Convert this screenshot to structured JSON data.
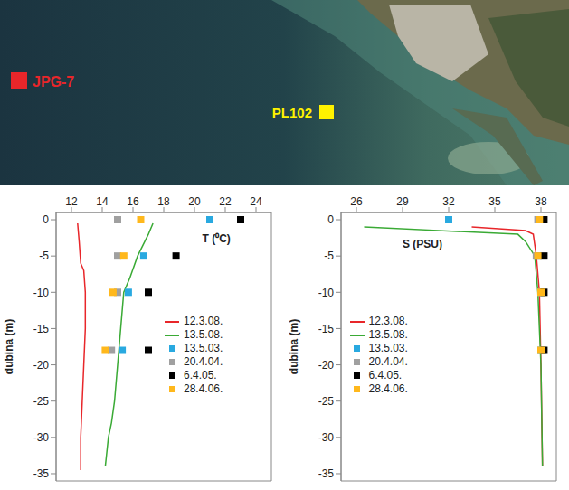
{
  "map": {
    "markers": [
      {
        "label": "JPG-7",
        "color": "#e8262a"
      },
      {
        "label": "PL102",
        "color": "#fff200"
      }
    ]
  },
  "chart_data": [
    {
      "type": "scatter",
      "x_label": "T (⁰C)",
      "y_label": "dubina (m)",
      "xlim": [
        11,
        25
      ],
      "xticks": [
        12,
        14,
        16,
        18,
        20,
        22,
        24
      ],
      "ylim": [
        -36,
        1
      ],
      "yticks": [
        0,
        -5,
        -10,
        -15,
        -20,
        -25,
        -30,
        -35
      ],
      "legend": "lower right",
      "series": [
        {
          "name": "12.3.08.",
          "color": "#e8262a",
          "type": "line",
          "line_style": "solid",
          "x": [
            12.4,
            12.5,
            12.6,
            12.8,
            12.9,
            12.9,
            12.8,
            12.7,
            12.6,
            12.6
          ],
          "y": [
            -0.5,
            -3,
            -6,
            -7,
            -10,
            -15,
            -20,
            -25,
            -30,
            -34.5
          ]
        },
        {
          "name": "13.5.08.",
          "color": "#3aaa35",
          "type": "line",
          "line_style": "solid",
          "x": [
            17.3,
            17,
            16.3,
            15.8,
            15.4,
            15.2,
            15,
            14.8,
            14.6,
            14.4,
            14.2
          ],
          "y": [
            -0.5,
            -2,
            -5,
            -8,
            -10,
            -15,
            -20,
            -25,
            -28,
            -30,
            -34
          ]
        },
        {
          "name": "13.5.03.",
          "color": "#29a9e0",
          "type": "scatter",
          "marker": "square",
          "x": [
            21,
            16.7,
            15.7,
            15.3
          ],
          "y": [
            0,
            -5,
            -10,
            -18
          ]
        },
        {
          "name": "20.4.04.",
          "color": "#a0a0a0",
          "type": "scatter",
          "marker": "square",
          "x": [
            15,
            15,
            15,
            14.6
          ],
          "y": [
            0,
            -5,
            -10,
            -18
          ]
        },
        {
          "name": "6.4.05.",
          "color": "#000000",
          "type": "scatter",
          "marker": "square",
          "x": [
            23,
            18.8,
            17,
            17
          ],
          "y": [
            0,
            -5,
            -10,
            -18
          ]
        },
        {
          "name": "28.4.06.",
          "color": "#ffb81c",
          "type": "scatter",
          "marker": "square",
          "x": [
            16.5,
            15.4,
            14.7,
            14.2
          ],
          "y": [
            0,
            -5,
            -10,
            -18
          ]
        }
      ]
    },
    {
      "type": "scatter",
      "x_label": "S (PSU)",
      "y_label": "dubina (m)",
      "xlim": [
        25,
        39
      ],
      "xticks": [
        26,
        29,
        32,
        35,
        38
      ],
      "ylim": [
        -36,
        1
      ],
      "yticks": [
        0,
        -5,
        -10,
        -15,
        -20,
        -25,
        -30,
        -35
      ],
      "legend": "lower left",
      "series": [
        {
          "name": "12.3.08.",
          "color": "#e8262a",
          "type": "line",
          "line_style": "solid",
          "x": [
            33.5,
            37,
            37.5,
            37.7,
            37.9,
            38,
            38.1
          ],
          "y": [
            -1,
            -1.5,
            -2,
            -5,
            -10,
            -20,
            -34
          ]
        },
        {
          "name": "13.5.08.",
          "color": "#3aaa35",
          "type": "line",
          "line_style": "solid",
          "x": [
            26.5,
            36.5,
            37,
            37.6,
            37.8,
            38,
            38.1
          ],
          "y": [
            -1,
            -2,
            -3,
            -5,
            -10,
            -20,
            -34
          ]
        },
        {
          "name": "13.5.03.",
          "color": "#29a9e0",
          "type": "scatter",
          "marker": "square",
          "x": [
            32,
            37.8,
            38,
            38
          ],
          "y": [
            0,
            -5,
            -10,
            -18
          ]
        },
        {
          "name": "20.4.04.",
          "color": "#a0a0a0",
          "type": "scatter",
          "marker": "square",
          "x": [
            37.8,
            37.7,
            38,
            38.1
          ],
          "y": [
            0,
            -5,
            -10,
            -18
          ]
        },
        {
          "name": "6.4.05.",
          "color": "#000000",
          "type": "scatter",
          "marker": "square",
          "x": [
            38.2,
            38.2,
            38.2,
            38.2
          ],
          "y": [
            0,
            -5,
            -10,
            -18
          ]
        },
        {
          "name": "28.4.06.",
          "color": "#ffb81c",
          "type": "scatter",
          "marker": "square",
          "x": [
            37.9,
            37.8,
            38,
            38
          ],
          "y": [
            0,
            -5,
            -10,
            -18
          ]
        }
      ]
    }
  ]
}
